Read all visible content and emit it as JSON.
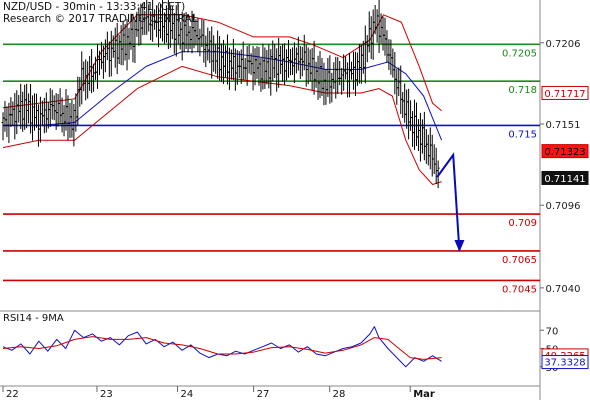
{
  "header": {
    "title": "NZD/USD - 30min - 13:33:41 (CET)",
    "research": "Research © 2017 TRADING CENTRAL"
  },
  "chart_data": [
    {
      "type": "line",
      "panel": "price",
      "ylim": [
        0.7025,
        0.7235
      ],
      "grid": false,
      "xrange": [
        0,
        600
      ],
      "x_axis_labels": [
        {
          "label": "22",
          "x": 0
        },
        {
          "label": "23",
          "x": 105
        },
        {
          "label": "24",
          "x": 195
        },
        {
          "label": "27",
          "x": 280
        },
        {
          "label": "28",
          "x": 365
        },
        {
          "label": "Mar",
          "x": 455
        }
      ],
      "y_ticks": [
        {
          "label": "0.7206",
          "value": 0.7206
        },
        {
          "label": "0.7151",
          "value": 0.7151
        },
        {
          "label": "0.7096",
          "value": 0.7096
        },
        {
          "label": "0.7040",
          "value": 0.704
        }
      ],
      "levels": [
        {
          "label": "0.7205",
          "value": 0.7205,
          "color": "#1a8a1a"
        },
        {
          "label": "0.718",
          "value": 0.718,
          "color": "#1a8a1a"
        },
        {
          "label": "0.715",
          "value": 0.715,
          "color": "#1010cc"
        },
        {
          "label": "0.709",
          "value": 0.709,
          "color": "#cc0000"
        },
        {
          "label": "0.7065",
          "value": 0.7065,
          "color": "#cc0000"
        },
        {
          "label": "0.7045",
          "value": 0.7045,
          "color": "#cc0000"
        }
      ],
      "price_badges": [
        {
          "label": "0.71717",
          "value": 0.71717,
          "bg": "#ffffff",
          "fg": "#cc0000",
          "border": "#cc0000"
        },
        {
          "label": "0.71323",
          "value": 0.71323,
          "bg": "#ff1111",
          "fg": "#000000",
          "border": "#cc0000"
        },
        {
          "label": "0.71141",
          "value": 0.71141,
          "bg": "#111111",
          "fg": "#ffffff",
          "border": "#111111"
        }
      ],
      "price_anchors": [
        [
          0,
          0.7152
        ],
        [
          15,
          0.716
        ],
        [
          25,
          0.7163
        ],
        [
          40,
          0.7154
        ],
        [
          55,
          0.7163
        ],
        [
          70,
          0.7156
        ],
        [
          80,
          0.7152
        ],
        [
          85,
          0.718
        ],
        [
          100,
          0.7185
        ],
        [
          110,
          0.7196
        ],
        [
          125,
          0.7202
        ],
        [
          135,
          0.7205
        ],
        [
          145,
          0.721
        ],
        [
          155,
          0.7222
        ],
        [
          170,
          0.722
        ],
        [
          185,
          0.7218
        ],
        [
          200,
          0.7212
        ],
        [
          215,
          0.7213
        ],
        [
          225,
          0.7205
        ],
        [
          240,
          0.7195
        ],
        [
          260,
          0.719
        ],
        [
          275,
          0.7192
        ],
        [
          290,
          0.7188
        ],
        [
          305,
          0.7192
        ],
        [
          320,
          0.7193
        ],
        [
          333,
          0.7196
        ],
        [
          345,
          0.7188
        ],
        [
          360,
          0.7178
        ],
        [
          375,
          0.7184
        ],
        [
          390,
          0.7185
        ],
        [
          400,
          0.7192
        ],
        [
          410,
          0.7212
        ],
        [
          418,
          0.722
        ],
        [
          425,
          0.721
        ],
        [
          432,
          0.7196
        ],
        [
          440,
          0.7178
        ],
        [
          450,
          0.716
        ],
        [
          460,
          0.7148
        ],
        [
          470,
          0.714
        ],
        [
          480,
          0.7128
        ],
        [
          488,
          0.7115
        ]
      ],
      "ma_anchors": [
        [
          0,
          0.715
        ],
        [
          40,
          0.715
        ],
        [
          80,
          0.7152
        ],
        [
          120,
          0.7172
        ],
        [
          160,
          0.719
        ],
        [
          200,
          0.72
        ],
        [
          240,
          0.72
        ],
        [
          280,
          0.7197
        ],
        [
          320,
          0.7193
        ],
        [
          360,
          0.7188
        ],
        [
          400,
          0.7188
        ],
        [
          430,
          0.7193
        ],
        [
          450,
          0.7185
        ],
        [
          470,
          0.717
        ],
        [
          490,
          0.714
        ]
      ],
      "bb_upper_anchors": [
        [
          0,
          0.7162
        ],
        [
          40,
          0.7165
        ],
        [
          80,
          0.7168
        ],
        [
          110,
          0.72
        ],
        [
          150,
          0.7225
        ],
        [
          200,
          0.7225
        ],
        [
          240,
          0.722
        ],
        [
          280,
          0.721
        ],
        [
          320,
          0.721
        ],
        [
          345,
          0.7205
        ],
        [
          380,
          0.7196
        ],
        [
          410,
          0.7208
        ],
        [
          425,
          0.7225
        ],
        [
          445,
          0.722
        ],
        [
          465,
          0.719
        ],
        [
          480,
          0.7165
        ],
        [
          490,
          0.716
        ]
      ],
      "bb_lower_anchors": [
        [
          0,
          0.7135
        ],
        [
          40,
          0.714
        ],
        [
          80,
          0.714
        ],
        [
          110,
          0.7155
        ],
        [
          150,
          0.7175
        ],
        [
          200,
          0.719
        ],
        [
          240,
          0.7183
        ],
        [
          280,
          0.718
        ],
        [
          320,
          0.7177
        ],
        [
          360,
          0.7172
        ],
        [
          400,
          0.7172
        ],
        [
          420,
          0.7175
        ],
        [
          435,
          0.717
        ],
        [
          450,
          0.714
        ],
        [
          465,
          0.712
        ],
        [
          480,
          0.711
        ],
        [
          490,
          0.7112
        ]
      ],
      "forecast_arrow": [
        [
          485,
          0.7115
        ],
        [
          503,
          0.713
        ],
        [
          510,
          0.7065
        ]
      ]
    },
    {
      "type": "line",
      "panel": "indicator",
      "title": "RSI14 - 9MA",
      "ylim": [
        10,
        90
      ],
      "xrange": [
        0,
        600
      ],
      "y_ticks": [
        {
          "label": "70",
          "value": 70
        },
        {
          "label": "50",
          "value": 50
        },
        {
          "label": "30",
          "value": 30
        }
      ],
      "badges": [
        {
          "label": "40.2265",
          "value": 40.2265,
          "bg": "#ffffff",
          "fg": "#cc0000",
          "border": "#cc0000"
        },
        {
          "label": "37.3328",
          "value": 37.3328,
          "bg": "#ffffff",
          "fg": "#1010cc",
          "border": "#1010cc"
        }
      ],
      "series": [
        {
          "color": "#1010cc",
          "values": [
            [
              0,
              52
            ],
            [
              10,
              48
            ],
            [
              20,
              55
            ],
            [
              30,
              44
            ],
            [
              40,
              58
            ],
            [
              50,
              47
            ],
            [
              60,
              60
            ],
            [
              70,
              50
            ],
            [
              80,
              70
            ],
            [
              90,
              62
            ],
            [
              100,
              66
            ],
            [
              110,
              58
            ],
            [
              120,
              62
            ],
            [
              130,
              54
            ],
            [
              140,
              64
            ],
            [
              150,
              68
            ],
            [
              160,
              55
            ],
            [
              170,
              60
            ],
            [
              180,
              52
            ],
            [
              190,
              57
            ],
            [
              200,
              48
            ],
            [
              210,
              54
            ],
            [
              220,
              45
            ],
            [
              230,
              40
            ],
            [
              240,
              44
            ],
            [
              250,
              42
            ],
            [
              260,
              47
            ],
            [
              270,
              44
            ],
            [
              280,
              48
            ],
            [
              290,
              52
            ],
            [
              300,
              56
            ],
            [
              310,
              50
            ],
            [
              320,
              54
            ],
            [
              330,
              46
            ],
            [
              340,
              52
            ],
            [
              350,
              44
            ],
            [
              360,
              42
            ],
            [
              370,
              46
            ],
            [
              380,
              50
            ],
            [
              390,
              52
            ],
            [
              400,
              56
            ],
            [
              410,
              66
            ],
            [
              415,
              74
            ],
            [
              420,
              62
            ],
            [
              425,
              56
            ],
            [
              430,
              50
            ],
            [
              440,
              40
            ],
            [
              450,
              30
            ],
            [
              460,
              40
            ],
            [
              470,
              36
            ],
            [
              480,
              42
            ],
            [
              490,
              36
            ]
          ]
        },
        {
          "color": "#cc0000",
          "values": [
            [
              0,
              50
            ],
            [
              20,
              52
            ],
            [
              40,
              50
            ],
            [
              60,
              53
            ],
            [
              80,
              60
            ],
            [
              100,
              63
            ],
            [
              120,
              60
            ],
            [
              140,
              60
            ],
            [
              160,
              62
            ],
            [
              180,
              56
            ],
            [
              200,
              54
            ],
            [
              220,
              50
            ],
            [
              240,
              44
            ],
            [
              260,
              44
            ],
            [
              280,
              46
            ],
            [
              300,
              51
            ],
            [
              320,
              52
            ],
            [
              340,
              49
            ],
            [
              360,
              45
            ],
            [
              380,
              48
            ],
            [
              400,
              54
            ],
            [
              415,
              62
            ],
            [
              430,
              60
            ],
            [
              440,
              52
            ],
            [
              455,
              40
            ],
            [
              470,
              38
            ],
            [
              490,
              40
            ]
          ]
        }
      ]
    }
  ]
}
